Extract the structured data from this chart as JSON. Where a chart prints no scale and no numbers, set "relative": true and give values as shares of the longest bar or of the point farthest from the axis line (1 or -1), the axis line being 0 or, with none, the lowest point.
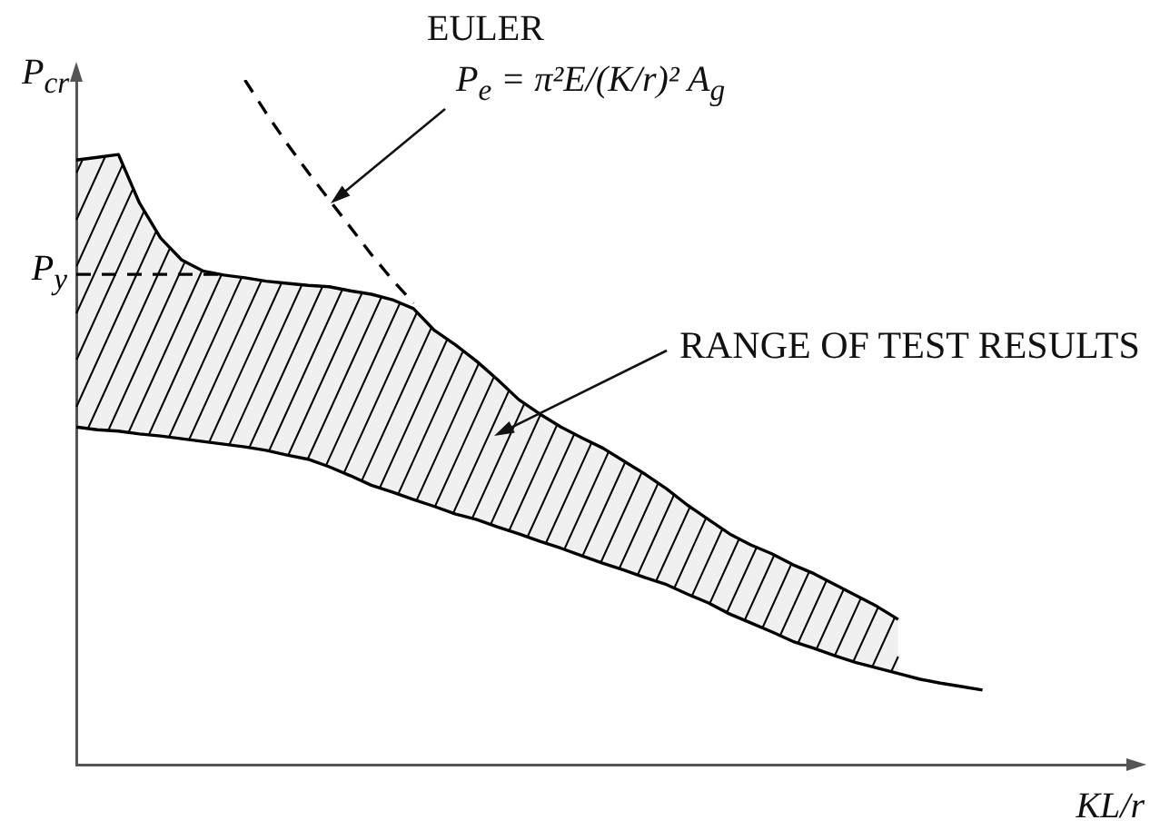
{
  "chart_data": {
    "type": "line",
    "relative": true,
    "marker": "none",
    "ylabel": "P$_{cr}$",
    "xlabel": "KL/r",
    "categories": [
      null,
      null,
      null,
      null,
      null,
      null,
      null,
      null,
      null,
      null,
      null,
      null,
      null,
      null,
      null,
      null,
      null,
      null,
      null,
      null,
      null,
      null,
      null,
      null,
      null,
      null,
      null,
      null,
      null,
      null,
      null,
      null,
      null,
      null,
      null,
      null,
      null,
      null,
      null,
      null,
      null,
      null,
      null,
      null,
      null,
      null,
      null,
      null,
      null,
      null,
      null
    ],
    "series": [
      {
        "type": "line",
        "color": "#000000",
        "values": [
          0.883,
          0.887,
          0.891,
          0.82,
          0.769,
          0.737,
          0.721,
          0.715,
          0.711,
          0.706,
          0.703,
          0.7,
          0.698,
          0.692,
          0.687,
          0.679,
          0.666,
          0.634,
          0.613,
          0.589,
          0.562,
          0.533,
          0.512,
          0.493,
          0.477,
          0.462,
          0.443,
          0.424,
          0.403,
          0.379,
          0.358,
          0.337,
          0.321,
          0.308,
          0.292,
          0.279,
          0.263,
          0.247,
          0.231,
          0.212,
          null,
          null,
          null,
          null,
          null,
          null,
          null,
          null,
          null,
          null,
          null
        ],
        "upper": [
          0.883,
          0.887,
          0.891,
          0.82,
          0.769,
          0.737,
          0.721,
          0.715,
          0.711,
          0.706,
          0.703,
          0.7,
          0.698,
          0.692,
          0.687,
          0.679,
          0.666,
          0.634,
          0.613,
          0.589,
          0.562,
          0.533,
          0.512,
          0.493,
          0.477,
          0.462,
          0.443,
          0.424,
          0.403,
          0.379,
          0.358,
          0.337,
          0.321,
          0.308,
          0.292,
          0.279,
          0.263,
          0.247,
          0.231,
          0.212,
          null,
          null,
          null,
          null,
          null,
          null,
          null,
          null,
          null,
          null,
          null
        ],
        "lower": [
          0.493,
          0.489,
          0.487,
          0.483,
          0.48,
          0.476,
          0.472,
          0.468,
          0.464,
          0.459,
          0.452,
          0.446,
          0.435,
          0.422,
          0.408,
          0.398,
          0.387,
          0.377,
          0.366,
          0.358,
          0.347,
          0.337,
          0.326,
          0.316,
          0.305,
          0.294,
          0.284,
          0.273,
          0.263,
          0.249,
          0.236,
          0.22,
          0.207,
          0.194,
          0.18,
          0.17,
          0.159,
          0.149,
          0.141,
          0.133,
          null,
          null,
          null,
          null,
          null,
          null,
          null,
          null,
          null,
          null,
          null
        ]
      },
      {
        "type": "line",
        "color": "#000000",
        "values": [
          0.493,
          0.489,
          0.487,
          0.483,
          0.48,
          0.476,
          0.472,
          0.468,
          0.464,
          0.459,
          0.452,
          0.446,
          0.435,
          0.422,
          0.408,
          0.398,
          0.387,
          0.377,
          0.366,
          0.358,
          0.347,
          0.337,
          0.326,
          0.316,
          0.305,
          0.294,
          0.284,
          0.273,
          0.263,
          0.249,
          0.236,
          0.22,
          0.207,
          0.194,
          0.18,
          0.17,
          0.159,
          0.149,
          0.141,
          0.133,
          0.125,
          0.119,
          0.114,
          0.109,
          null,
          null,
          null,
          null,
          null,
          null,
          null
        ]
      },
      {
        "type": "line",
        "color": "#000000",
        "line_style": "dashed",
        "values": [
          null,
          null,
          null,
          null,
          null,
          null,
          null,
          null,
          1,
          0.952,
          0.907,
          0.865,
          0.825,
          0.785,
          0.745,
          0.708,
          0.674,
          null,
          null,
          null,
          null,
          null,
          null,
          null,
          null,
          null,
          null,
          null,
          null,
          null,
          null,
          null,
          null,
          null,
          null,
          null,
          null,
          null,
          null,
          null,
          null,
          null,
          null,
          null,
          null,
          null,
          null,
          null,
          null,
          null,
          null
        ]
      },
      {
        "type": "line",
        "name": "P$_{y}$",
        "color": "#000000",
        "line_style": "dashed",
        "values": [
          0.716,
          0.716,
          0.716,
          0.716,
          0.716,
          0.716,
          0.716,
          0.716,
          null,
          null,
          null,
          null,
          null,
          null,
          null,
          null,
          null,
          null,
          null,
          null,
          null,
          null,
          null,
          null,
          null,
          null,
          null,
          null,
          null,
          null,
          null,
          null,
          null,
          null,
          null,
          null,
          null,
          null,
          null,
          null,
          null,
          null,
          null,
          null,
          null,
          null,
          null,
          null,
          null,
          null,
          null
        ]
      }
    ],
    "annotations": [
      "EULER",
      "P$_{e}$ = π²E/(K/r)² A$_{g}$",
      "RANGE OF TEST RESULTS"
    ]
  }
}
